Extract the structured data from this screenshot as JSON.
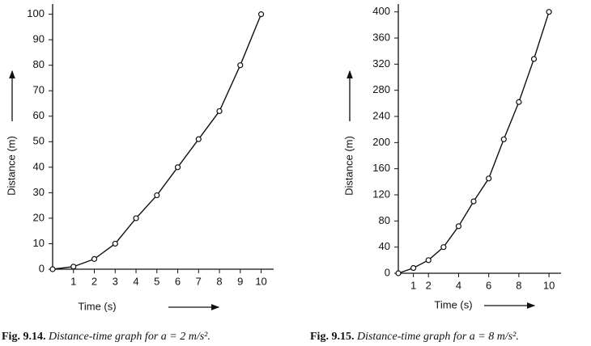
{
  "chart_data": [
    {
      "type": "line",
      "ylabel": "Distance (m)",
      "xlabel": "Time (s)",
      "caption_number": "Fig. 9.14.",
      "caption": "Distance-time graph for a = 2 m/s².",
      "x": [
        0,
        1,
        2,
        3,
        4,
        5,
        6,
        7,
        8,
        9,
        10
      ],
      "values": [
        0,
        1,
        4,
        10,
        20,
        29,
        40,
        51,
        62,
        80,
        100
      ],
      "color": "#111111",
      "xlim": [
        0,
        10.6
      ],
      "ylim": [
        0,
        104
      ],
      "xticks": [
        1,
        2,
        3,
        4,
        5,
        6,
        7,
        8,
        9,
        10
      ],
      "yticks": [
        0,
        10,
        20,
        30,
        40,
        50,
        60,
        70,
        80,
        90,
        100
      ]
    },
    {
      "type": "line",
      "ylabel": "Distance (m)",
      "xlabel": "Time (s)",
      "caption_number": "Fig. 9.15.",
      "caption": "Distance-time graph for a = 8 m/s².",
      "x": [
        0,
        1,
        2,
        3,
        4,
        5,
        6,
        7,
        8,
        9,
        10
      ],
      "values": [
        0,
        8,
        20,
        40,
        72,
        110,
        145,
        205,
        262,
        328,
        400
      ],
      "color": "#111111",
      "xlim": [
        0,
        10.8
      ],
      "ylim": [
        0,
        412
      ],
      "xticks": [
        1,
        2,
        4,
        6,
        8,
        10
      ],
      "yticks": [
        0,
        40,
        80,
        120,
        160,
        200,
        240,
        280,
        320,
        360,
        400
      ]
    }
  ]
}
